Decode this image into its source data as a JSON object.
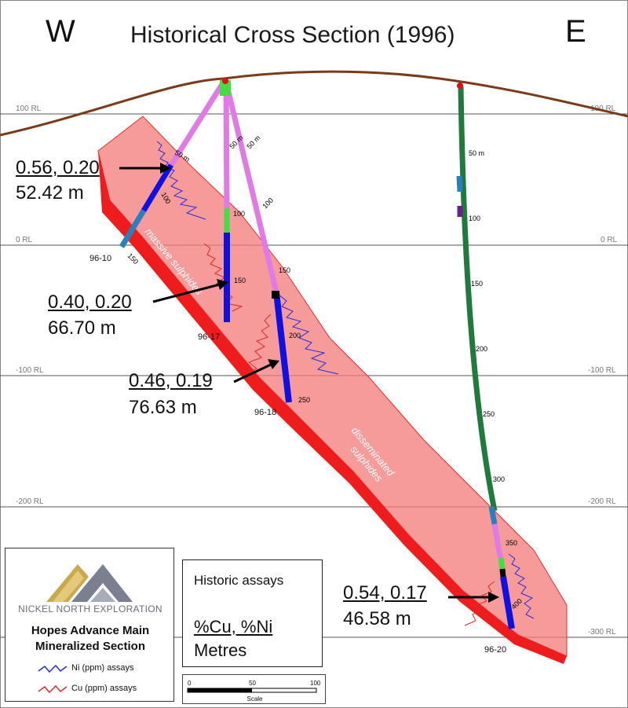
{
  "title": "Historical Cross Section (1996)",
  "west_label": "W",
  "east_label": "E",
  "elevation_labels": [
    "100 RL",
    "0 RL",
    "-100 RL",
    "-200 RL",
    "-300 RL"
  ],
  "holes": [
    {
      "id": "96-10",
      "depth_labels": [
        "50 m",
        "100",
        "150"
      ]
    },
    {
      "id": "96-17",
      "depth_labels": [
        "50 m",
        "100",
        "150"
      ]
    },
    {
      "id": "96-18",
      "depth_labels": [
        "50 m",
        "100",
        "150",
        "200",
        "250"
      ]
    },
    {
      "id": "96-20",
      "depth_labels": [
        "50 m",
        "100",
        "150",
        "200",
        "250",
        "300",
        "350",
        "400"
      ]
    }
  ],
  "zone_labels": {
    "massive": "massive sulphides",
    "disseminated_1": "disseminated",
    "disseminated_2": "sulphides"
  },
  "intercepts": [
    {
      "grade": "0.56, 0.20",
      "length": "52.42 m"
    },
    {
      "grade": "0.40, 0.20",
      "length": "66.70 m"
    },
    {
      "grade": "0.46, 0.19",
      "length": "76.63 m"
    },
    {
      "grade": "0.54, 0.17",
      "length": "46.58 m"
    }
  ],
  "legend": {
    "company": "NICKEL NORTH EXPLORATION",
    "title_line1": "Hopes Advance Main",
    "title_line2": "Mineralized Section",
    "ni_label": "Ni (ppm) assays",
    "cu_label": "Cu (ppm) assays"
  },
  "assay_box": {
    "heading": "Historic assays",
    "units": "%Cu, %Ni",
    "length_unit": "Metres"
  },
  "scale": {
    "ticks": [
      "0",
      "50",
      "100"
    ],
    "label": "Scale"
  },
  "colors": {
    "topography": "#7a3b1a",
    "zone_fill": "#f47a78",
    "massive": "#ee1c1c",
    "hole_pink": "#e07be6",
    "hole_green": "#1f7a3c",
    "mineralized": "#1010e0",
    "ni_trace": "#2b2bd6",
    "cu_trace": "#dd2a2a"
  }
}
